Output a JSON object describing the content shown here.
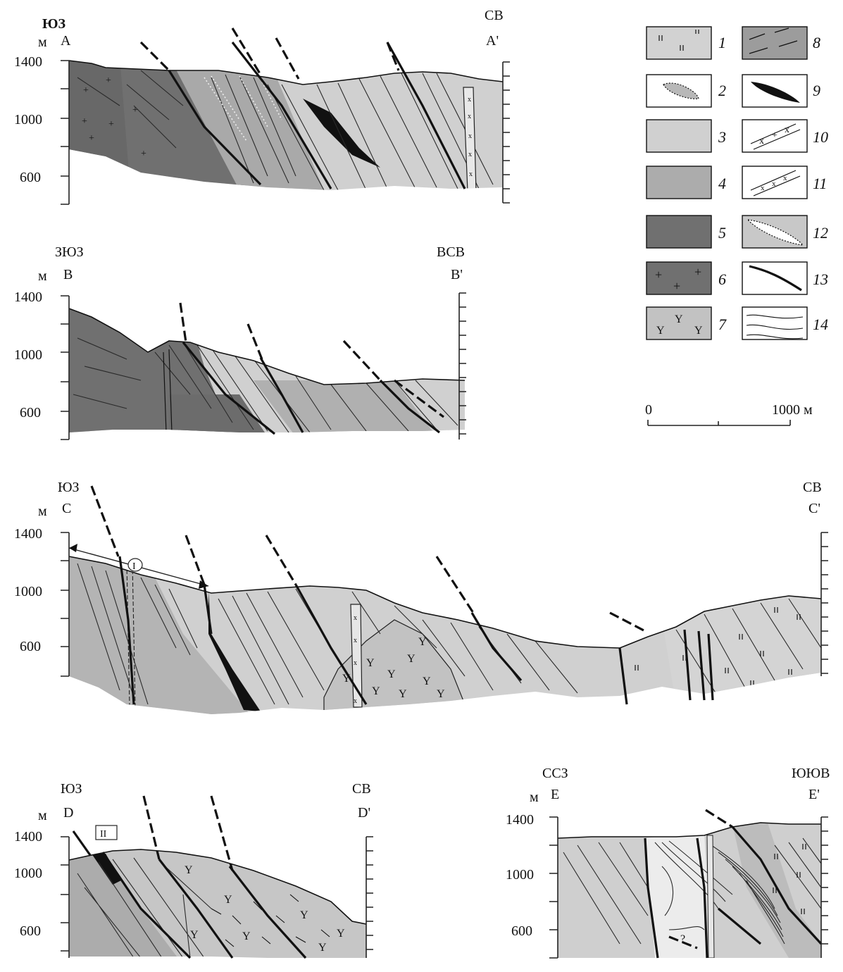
{
  "colors": {
    "unit1": "#d2d2d2",
    "unit3": "#d0d0d0",
    "unit4": "#acacac",
    "unit5": "#707070",
    "unit7": "#c2c2c2",
    "unit8": "#9c9c9c",
    "ink": "#111111"
  },
  "sections": {
    "A": {
      "left_dir": "ЮЗ",
      "right_dir": "СВ",
      "left_letter": "A",
      "right_letter": "A'",
      "unit": "м",
      "ticks": [
        "1400",
        "1000",
        "600"
      ]
    },
    "B": {
      "left_dir": "ЗЮЗ",
      "right_dir": "ВСВ",
      "left_letter": "B",
      "right_letter": "B'",
      "unit": "м",
      "ticks": [
        "1400",
        "1000",
        "600"
      ]
    },
    "C": {
      "left_dir": "ЮЗ",
      "right_dir": "СВ",
      "left_letter": "C",
      "right_letter": "C'",
      "unit": "м",
      "ticks": [
        "1400",
        "1000",
        "600"
      ],
      "marker": "I"
    },
    "D": {
      "left_dir": "ЮЗ",
      "right_dir": "СВ",
      "left_letter": "D",
      "right_letter": "D'",
      "unit": "м",
      "ticks": [
        "1400",
        "1000",
        "600"
      ],
      "marker": "II"
    },
    "E": {
      "left_dir": "ССЗ",
      "right_dir": "ЮЮВ",
      "left_letter": "E",
      "right_letter": "E'",
      "unit": "м",
      "ticks": [
        "1400",
        "1000",
        "600"
      ],
      "query": "?"
    }
  },
  "legend": {
    "items": [
      {
        "num": "1",
        "icon": "bars-pattern"
      },
      {
        "num": "2",
        "icon": "breccia-lens"
      },
      {
        "num": "3",
        "icon": "light-fill"
      },
      {
        "num": "4",
        "icon": "medium-fill"
      },
      {
        "num": "5",
        "icon": "dark-fill"
      },
      {
        "num": "6",
        "icon": "dark-fill-plus"
      },
      {
        "num": "7",
        "icon": "fill-y-pattern"
      },
      {
        "num": "8",
        "icon": "fill-dash-pattern"
      },
      {
        "num": "9",
        "icon": "black-lens"
      },
      {
        "num": "10",
        "icon": "dyke-crosses"
      },
      {
        "num": "11",
        "icon": "dyke-small-crosses"
      },
      {
        "num": "12",
        "icon": "dotted-lens"
      },
      {
        "num": "13",
        "icon": "fault-line"
      },
      {
        "num": "14",
        "icon": "strata-lines"
      }
    ]
  },
  "scale_bar": {
    "start": "0",
    "end": "1000 м"
  }
}
